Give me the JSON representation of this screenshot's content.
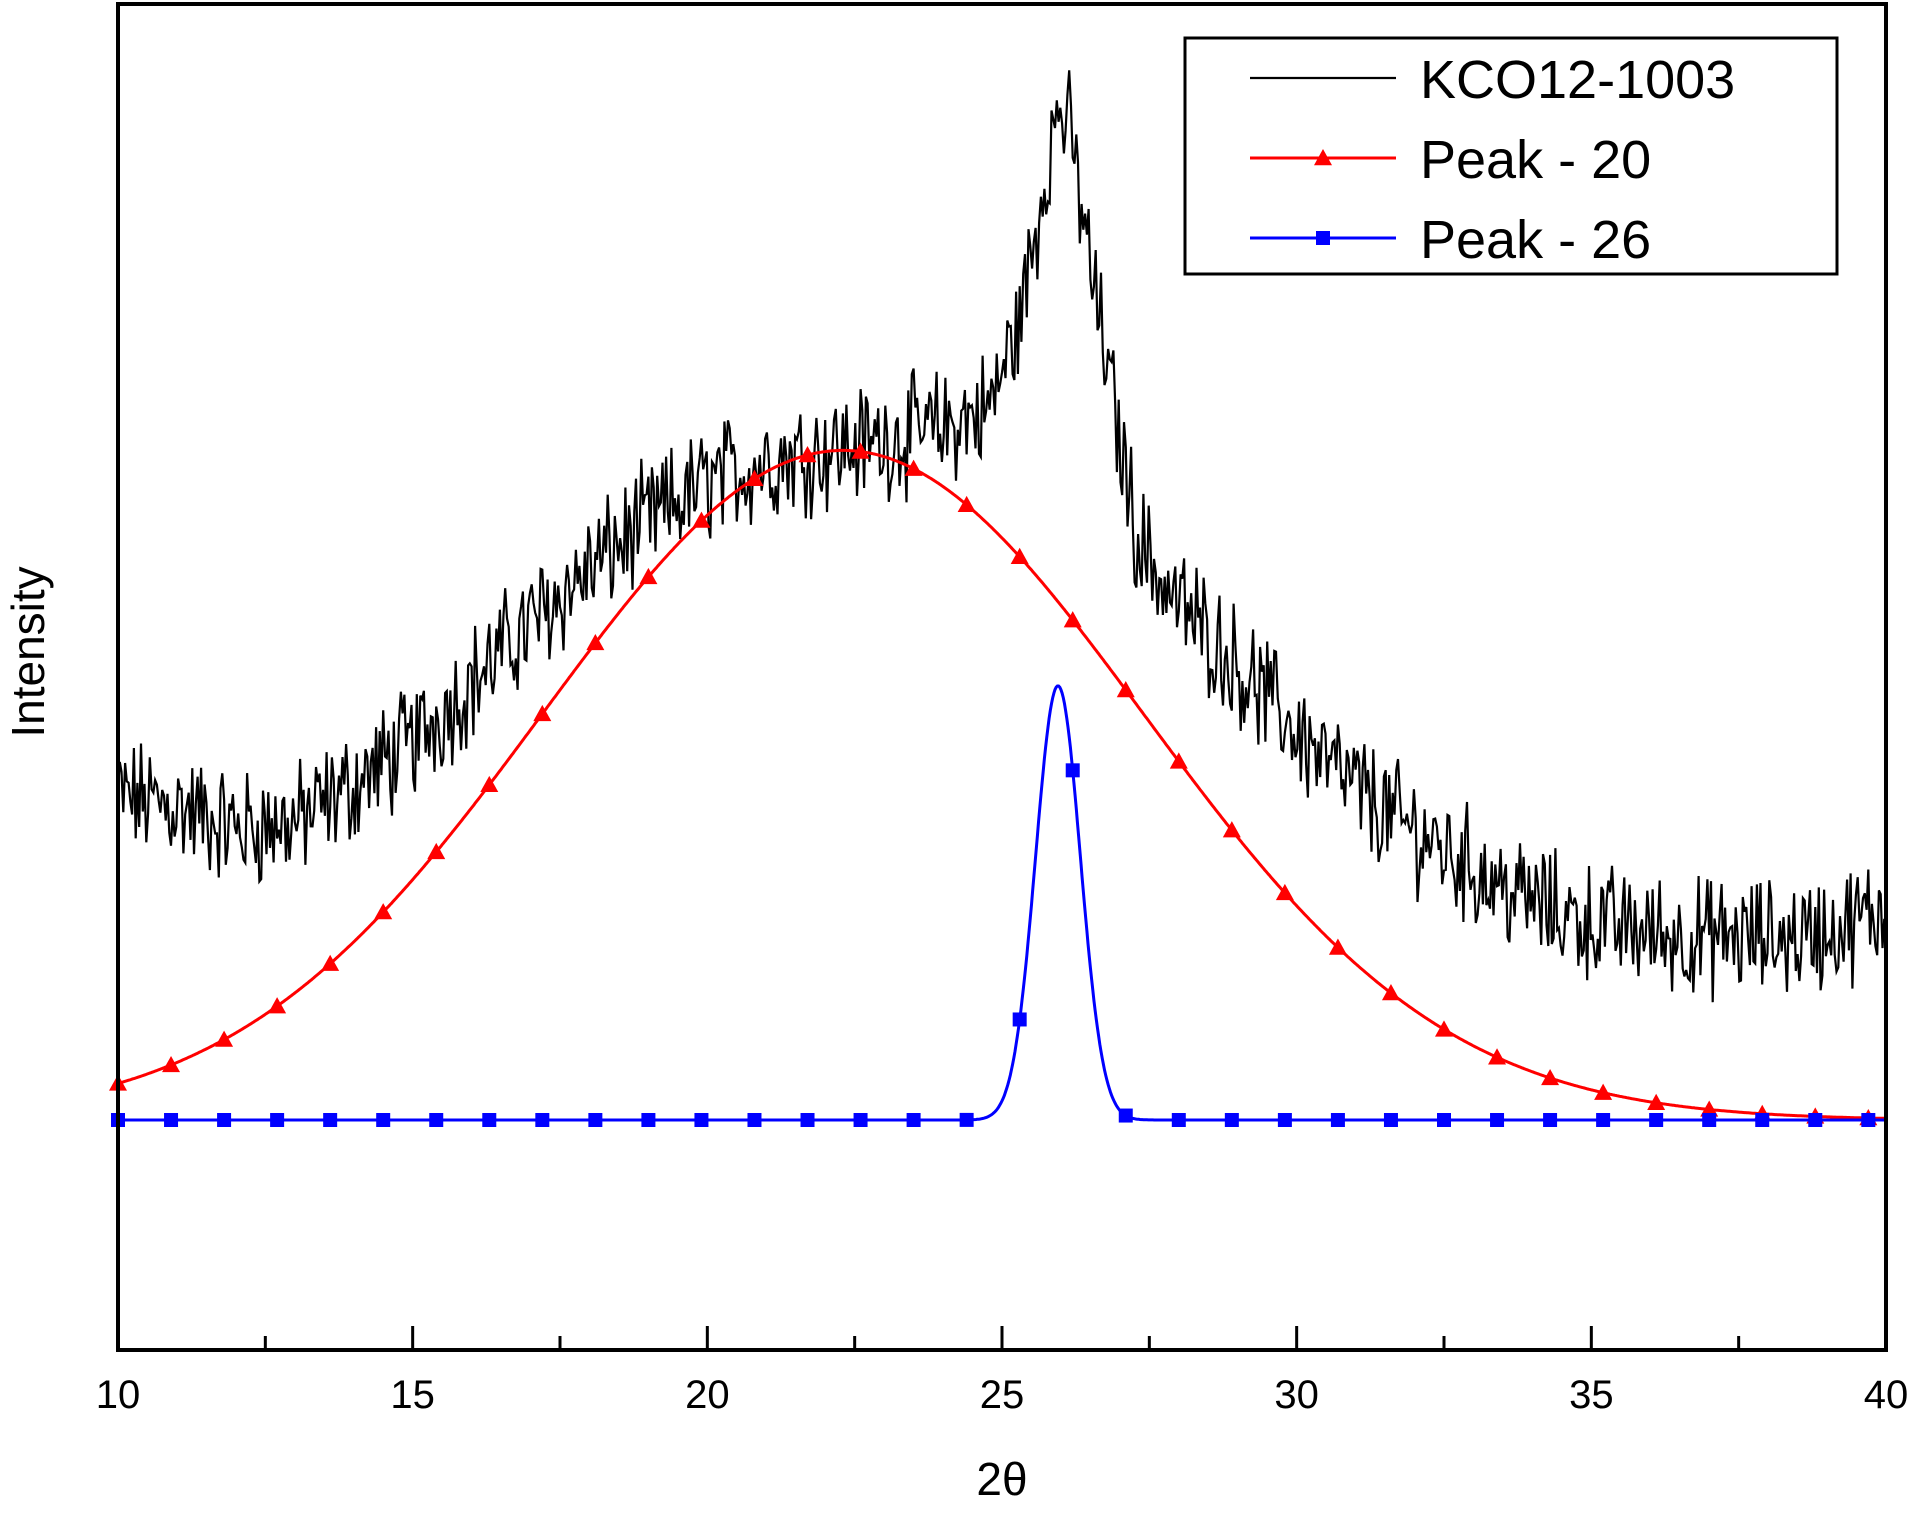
{
  "chart_data": {
    "type": "line",
    "title": "",
    "xlabel": "2θ",
    "ylabel": "Intensity",
    "xlim": [
      10,
      40
    ],
    "ylim": [
      0,
      1000
    ],
    "x_ticks": [
      10,
      15,
      20,
      25,
      30,
      35,
      40
    ],
    "x_minor_step": 2.5,
    "grid": false,
    "legend_position": "top-right",
    "series": [
      {
        "name": "KCO12-1003",
        "color": "#000000",
        "marker": "none",
        "noise": true,
        "profile": [
          [
            10,
            300
          ],
          [
            11,
            290
          ],
          [
            12,
            270
          ],
          [
            13,
            275
          ],
          [
            14,
            310
          ],
          [
            15,
            350
          ],
          [
            16,
            405
          ],
          [
            17,
            460
          ],
          [
            18,
            510
          ],
          [
            19,
            555
          ],
          [
            20,
            590
          ],
          [
            21,
            610
          ],
          [
            22,
            620
          ],
          [
            23,
            630
          ],
          [
            24,
            640
          ],
          [
            24.8,
            660
          ],
          [
            25.3,
            740
          ],
          [
            25.6,
            830
          ],
          [
            25.8,
            900
          ],
          [
            26.0,
            940
          ],
          [
            26.2,
            900
          ],
          [
            26.5,
            790
          ],
          [
            26.9,
            660
          ],
          [
            27.3,
            540
          ],
          [
            27.8,
            490
          ],
          [
            28.5,
            450
          ],
          [
            29.5,
            390
          ],
          [
            30.5,
            330
          ],
          [
            31.5,
            285
          ],
          [
            32.5,
            250
          ],
          [
            33.5,
            215
          ],
          [
            34.5,
            190
          ],
          [
            35.5,
            178
          ],
          [
            36.5,
            170
          ],
          [
            37.5,
            168
          ],
          [
            38.5,
            170
          ],
          [
            39.3,
            178
          ],
          [
            40,
            195
          ]
        ]
      },
      {
        "name": "Peak - 20",
        "color": "#ff0000",
        "marker": "triangle",
        "gaussian": {
          "baseline": 0,
          "amplitude": 620,
          "center": 22.3,
          "sigma": 5.1
        }
      },
      {
        "name": "Peak - 26",
        "color": "#0000ff",
        "marker": "square",
        "gaussian": {
          "baseline": 0,
          "amplitude": 402,
          "center": 25.95,
          "sigma": 0.38
        }
      }
    ]
  }
}
